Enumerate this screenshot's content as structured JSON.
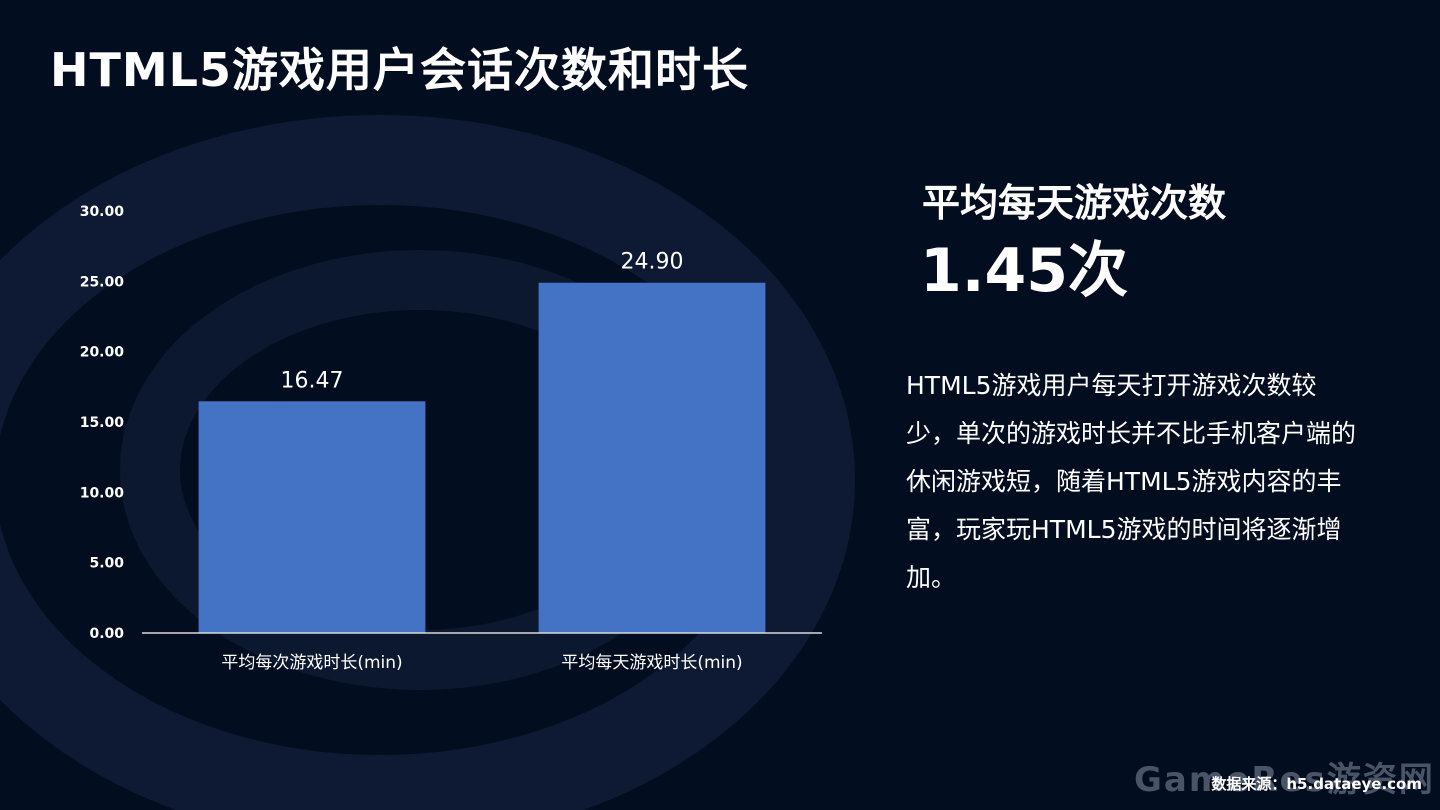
{
  "title": "HTML5游戏用户会话次数和时长",
  "kpi": {
    "label": "平均每天游戏次数",
    "value": "1.45次"
  },
  "description": "HTML5游戏用户每天打开游戏次数较少，单次的游戏时长并不比手机客户端的休闲游戏短，随着HTML5游戏内容的丰富，玩家玩HTML5游戏的时间将逐渐增加。",
  "source": "数据来源：h5.dataeye.com",
  "watermark": "GameRes游资网",
  "colors": {
    "background": "#030d20",
    "bar": "#4472c4",
    "text": "#ffffff"
  },
  "chart_data": {
    "type": "bar",
    "categories": [
      "平均每次游戏时长(min)",
      "平均每天游戏时长(min)"
    ],
    "values": [
      16.47,
      24.9
    ],
    "value_labels": [
      "16.47",
      "24.90"
    ],
    "yticks": [
      "0.00",
      "5.00",
      "10.00",
      "15.00",
      "20.00",
      "25.00",
      "30.00"
    ],
    "ylim": [
      0,
      30
    ],
    "grid": false,
    "title": "",
    "xlabel": "",
    "ylabel": ""
  }
}
